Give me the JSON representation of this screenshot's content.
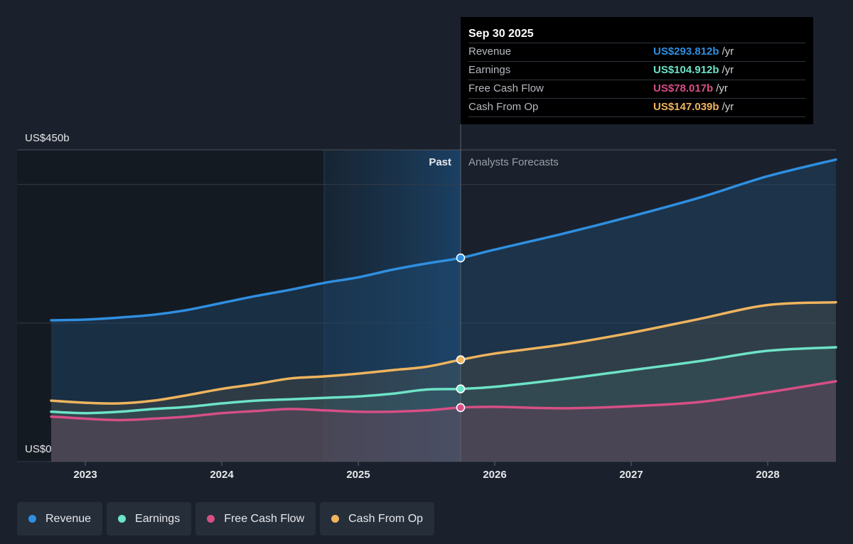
{
  "chart_data": {
    "type": "area",
    "y_axis": {
      "top_label": "US$450b",
      "bottom_label": "US$0",
      "ylim": [
        0,
        450
      ],
      "gridlines": [
        0,
        200,
        400,
        450
      ]
    },
    "x_axis": {
      "ticks": [
        "2023",
        "2024",
        "2025",
        "2026",
        "2027",
        "2028"
      ],
      "xlim": [
        2022.5,
        2028.5
      ]
    },
    "regions": {
      "past_label": "Past",
      "forecast_label": "Analysts Forecasts",
      "divider_x": 2025.75,
      "highlight_start_x": 2024.75
    },
    "series": [
      {
        "name": "Revenue",
        "color": "#2f8fe0",
        "points": [
          [
            2022.75,
            204
          ],
          [
            2023.0,
            205
          ],
          [
            2023.25,
            208
          ],
          [
            2023.5,
            212
          ],
          [
            2023.75,
            219
          ],
          [
            2024.0,
            229
          ],
          [
            2024.25,
            239
          ],
          [
            2024.5,
            248
          ],
          [
            2024.75,
            258
          ],
          [
            2025.0,
            266
          ],
          [
            2025.25,
            277
          ],
          [
            2025.5,
            286
          ],
          [
            2025.75,
            294
          ],
          [
            2026.0,
            306
          ],
          [
            2026.5,
            329
          ],
          [
            2027.0,
            354
          ],
          [
            2027.5,
            381
          ],
          [
            2028.0,
            412
          ],
          [
            2028.5,
            436
          ]
        ]
      },
      {
        "name": "Earnings",
        "color": "#6de3c7",
        "points": [
          [
            2022.75,
            72
          ],
          [
            2023.0,
            70
          ],
          [
            2023.25,
            72
          ],
          [
            2023.5,
            76
          ],
          [
            2023.75,
            79
          ],
          [
            2024.0,
            84
          ],
          [
            2024.25,
            88
          ],
          [
            2024.5,
            90
          ],
          [
            2024.75,
            92
          ],
          [
            2025.0,
            94
          ],
          [
            2025.25,
            98
          ],
          [
            2025.5,
            104
          ],
          [
            2025.75,
            105
          ],
          [
            2026.0,
            108
          ],
          [
            2026.5,
            119
          ],
          [
            2027.0,
            132
          ],
          [
            2027.5,
            145
          ],
          [
            2028.0,
            160
          ],
          [
            2028.5,
            165
          ]
        ]
      },
      {
        "name": "Free Cash Flow",
        "color": "#d64f85",
        "points": [
          [
            2022.75,
            65
          ],
          [
            2023.0,
            62
          ],
          [
            2023.25,
            60
          ],
          [
            2023.5,
            62
          ],
          [
            2023.75,
            65
          ],
          [
            2024.0,
            70
          ],
          [
            2024.25,
            73
          ],
          [
            2024.5,
            76
          ],
          [
            2024.75,
            74
          ],
          [
            2025.0,
            72
          ],
          [
            2025.25,
            72
          ],
          [
            2025.5,
            74
          ],
          [
            2025.75,
            78
          ],
          [
            2026.0,
            79
          ],
          [
            2026.5,
            77
          ],
          [
            2027.0,
            80
          ],
          [
            2027.5,
            86
          ],
          [
            2028.0,
            100
          ],
          [
            2028.5,
            116
          ]
        ]
      },
      {
        "name": "Cash From Op",
        "color": "#efb45e",
        "points": [
          [
            2022.75,
            88
          ],
          [
            2023.0,
            85
          ],
          [
            2023.25,
            84
          ],
          [
            2023.5,
            88
          ],
          [
            2023.75,
            96
          ],
          [
            2024.0,
            105
          ],
          [
            2024.25,
            112
          ],
          [
            2024.5,
            120
          ],
          [
            2024.75,
            123
          ],
          [
            2025.0,
            127
          ],
          [
            2025.25,
            132
          ],
          [
            2025.5,
            137
          ],
          [
            2025.75,
            147
          ],
          [
            2026.0,
            156
          ],
          [
            2026.5,
            169
          ],
          [
            2027.0,
            186
          ],
          [
            2027.5,
            206
          ],
          [
            2028.0,
            226
          ],
          [
            2028.5,
            230
          ]
        ]
      }
    ]
  },
  "tooltip": {
    "date": "Sep 30 2025",
    "unit": "/yr",
    "rows": [
      {
        "label": "Revenue",
        "value": "US$293.812b",
        "color": "#2f8fe0"
      },
      {
        "label": "Earnings",
        "value": "US$104.912b",
        "color": "#6de3c7"
      },
      {
        "label": "Free Cash Flow",
        "value": "US$78.017b",
        "color": "#d64f85"
      },
      {
        "label": "Cash From Op",
        "value": "US$147.039b",
        "color": "#efb45e"
      }
    ]
  },
  "legend": [
    {
      "label": "Revenue",
      "color": "#2f8fe0"
    },
    {
      "label": "Earnings",
      "color": "#6de3c7"
    },
    {
      "label": "Free Cash Flow",
      "color": "#d64f85"
    },
    {
      "label": "Cash From Op",
      "color": "#efb45e"
    }
  ]
}
